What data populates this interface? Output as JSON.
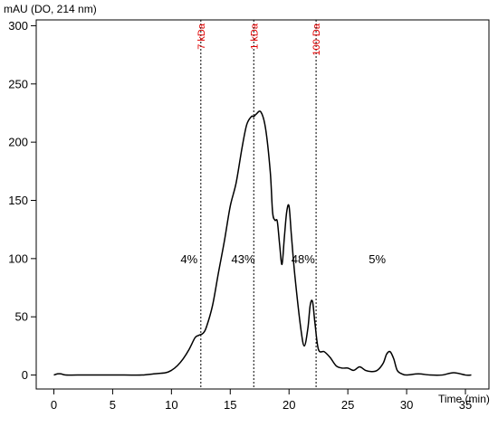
{
  "chart_data": {
    "type": "line",
    "title": "",
    "ylabel": "mAU (DO, 214 nm)",
    "xlabel": "Time (min)",
    "xlim": [
      -1.5,
      37
    ],
    "ylim": [
      -12,
      305
    ],
    "x_ticks": [
      0,
      5,
      10,
      15,
      20,
      25,
      30,
      35
    ],
    "y_ticks": [
      0,
      50,
      100,
      150,
      200,
      250,
      300
    ],
    "grid": false,
    "legend": "none",
    "line_color": "#000000",
    "marker_color": "#e00000",
    "markers": [
      {
        "label": "7 kDa",
        "x": 12.5
      },
      {
        "label": "1 kDa",
        "x": 17.0
      },
      {
        "label": "100 Da",
        "x": 22.3
      }
    ],
    "fractions": [
      {
        "label": "4%",
        "x": 11.5,
        "y": 100
      },
      {
        "label": "43%",
        "x": 16.1,
        "y": 100
      },
      {
        "label": "48%",
        "x": 21.2,
        "y": 100
      },
      {
        "label": "5%",
        "x": 27.5,
        "y": 100
      }
    ],
    "series": [
      {
        "x": [
          0,
          0.3,
          0.6,
          1,
          2,
          4,
          6,
          7.5,
          8.5,
          9.5,
          10,
          10.5,
          11,
          11.5,
          12,
          12.3,
          12.7,
          13,
          13.5,
          14,
          14.5,
          15,
          15.5,
          16,
          16.4,
          16.8,
          17,
          17.2,
          17.6,
          18,
          18.4,
          18.6,
          18.8,
          19.0,
          19.2,
          19.4,
          19.6,
          19.8,
          20.0,
          20.2,
          20.5,
          21.0,
          21.3,
          21.6,
          21.8,
          22.0,
          22.2,
          22.5,
          23,
          23.5,
          24,
          24.5,
          25,
          25.5,
          26,
          26.5,
          27,
          27.5,
          28,
          28.3,
          28.6,
          28.9,
          29.2,
          29.6,
          30,
          31,
          32,
          33,
          34,
          35,
          35.5
        ],
        "y": [
          0,
          1,
          1,
          0,
          0,
          0,
          0,
          0,
          1,
          2,
          4,
          8,
          14,
          22,
          32,
          34,
          36,
          42,
          60,
          88,
          115,
          145,
          165,
          195,
          215,
          222,
          222,
          224,
          226,
          212,
          175,
          140,
          133,
          132,
          112,
          95,
          118,
          140,
          145,
          120,
          85,
          40,
          25,
          40,
          60,
          63,
          45,
          22,
          20,
          15,
          8,
          6,
          6,
          4,
          7,
          4,
          3,
          4,
          10,
          18,
          20,
          14,
          4,
          1,
          0,
          1,
          0,
          0,
          2,
          0,
          0
        ]
      }
    ]
  }
}
